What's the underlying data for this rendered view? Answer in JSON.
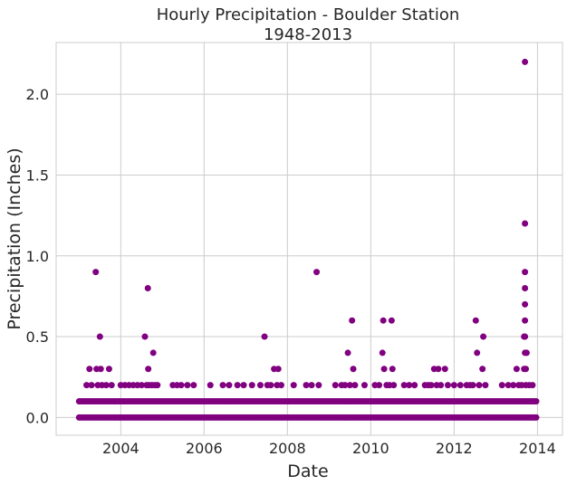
{
  "chart_data": {
    "type": "scatter",
    "title_line1": "Hourly Precipitation - Boulder Station",
    "title_line2": "1948-2013",
    "xlabel": "Date",
    "ylabel": "Precipitation (Inches)",
    "x_ticks": [
      "2004",
      "2006",
      "2008",
      "2010",
      "2012",
      "2014"
    ],
    "y_ticks": [
      "0.0",
      "0.5",
      "1.0",
      "1.5",
      "2.0"
    ],
    "xlim": [
      2002.45,
      2014.6
    ],
    "ylim": [
      -0.11,
      2.32
    ],
    "grid": true,
    "marker_color": "#800080",
    "baseline_values": [
      0,
      0.1
    ],
    "baseline_x_range": [
      2003.0,
      2013.97
    ],
    "points": [
      {
        "x": 2003.18,
        "y": 0.2
      },
      {
        "x": 2003.25,
        "y": 0.3
      },
      {
        "x": 2003.3,
        "y": 0.2
      },
      {
        "x": 2003.4,
        "y": 0.9
      },
      {
        "x": 2003.42,
        "y": 0.3
      },
      {
        "x": 2003.45,
        "y": 0.2
      },
      {
        "x": 2003.5,
        "y": 0.5
      },
      {
        "x": 2003.52,
        "y": 0.3
      },
      {
        "x": 2003.55,
        "y": 0.2
      },
      {
        "x": 2003.65,
        "y": 0.2
      },
      {
        "x": 2003.72,
        "y": 0.3
      },
      {
        "x": 2003.78,
        "y": 0.2
      },
      {
        "x": 2004.0,
        "y": 0.2
      },
      {
        "x": 2004.1,
        "y": 0.2
      },
      {
        "x": 2004.2,
        "y": 0.2
      },
      {
        "x": 2004.3,
        "y": 0.2
      },
      {
        "x": 2004.4,
        "y": 0.2
      },
      {
        "x": 2004.5,
        "y": 0.2
      },
      {
        "x": 2004.58,
        "y": 0.5
      },
      {
        "x": 2004.62,
        "y": 0.2
      },
      {
        "x": 2004.65,
        "y": 0.8
      },
      {
        "x": 2004.66,
        "y": 0.3
      },
      {
        "x": 2004.68,
        "y": 0.2
      },
      {
        "x": 2004.75,
        "y": 0.2
      },
      {
        "x": 2004.78,
        "y": 0.4
      },
      {
        "x": 2004.82,
        "y": 0.2
      },
      {
        "x": 2004.88,
        "y": 0.2
      },
      {
        "x": 2005.25,
        "y": 0.2
      },
      {
        "x": 2005.35,
        "y": 0.2
      },
      {
        "x": 2005.45,
        "y": 0.2
      },
      {
        "x": 2005.6,
        "y": 0.2
      },
      {
        "x": 2005.75,
        "y": 0.2
      },
      {
        "x": 2006.15,
        "y": 0.2
      },
      {
        "x": 2006.45,
        "y": 0.2
      },
      {
        "x": 2006.6,
        "y": 0.2
      },
      {
        "x": 2006.8,
        "y": 0.2
      },
      {
        "x": 2006.95,
        "y": 0.2
      },
      {
        "x": 2007.15,
        "y": 0.2
      },
      {
        "x": 2007.35,
        "y": 0.2
      },
      {
        "x": 2007.45,
        "y": 0.5
      },
      {
        "x": 2007.52,
        "y": 0.2
      },
      {
        "x": 2007.6,
        "y": 0.2
      },
      {
        "x": 2007.68,
        "y": 0.3
      },
      {
        "x": 2007.75,
        "y": 0.2
      },
      {
        "x": 2007.78,
        "y": 0.3
      },
      {
        "x": 2007.85,
        "y": 0.2
      },
      {
        "x": 2008.15,
        "y": 0.2
      },
      {
        "x": 2008.45,
        "y": 0.2
      },
      {
        "x": 2008.58,
        "y": 0.2
      },
      {
        "x": 2008.7,
        "y": 0.9
      },
      {
        "x": 2008.75,
        "y": 0.2
      },
      {
        "x": 2009.15,
        "y": 0.2
      },
      {
        "x": 2009.3,
        "y": 0.2
      },
      {
        "x": 2009.38,
        "y": 0.2
      },
      {
        "x": 2009.45,
        "y": 0.4
      },
      {
        "x": 2009.5,
        "y": 0.2
      },
      {
        "x": 2009.55,
        "y": 0.6
      },
      {
        "x": 2009.58,
        "y": 0.3
      },
      {
        "x": 2009.62,
        "y": 0.2
      },
      {
        "x": 2009.85,
        "y": 0.2
      },
      {
        "x": 2010.1,
        "y": 0.2
      },
      {
        "x": 2010.2,
        "y": 0.2
      },
      {
        "x": 2010.28,
        "y": 0.4
      },
      {
        "x": 2010.3,
        "y": 0.6
      },
      {
        "x": 2010.32,
        "y": 0.3
      },
      {
        "x": 2010.38,
        "y": 0.2
      },
      {
        "x": 2010.45,
        "y": 0.2
      },
      {
        "x": 2010.5,
        "y": 0.6
      },
      {
        "x": 2010.52,
        "y": 0.3
      },
      {
        "x": 2010.55,
        "y": 0.2
      },
      {
        "x": 2010.8,
        "y": 0.2
      },
      {
        "x": 2010.92,
        "y": 0.2
      },
      {
        "x": 2011.05,
        "y": 0.2
      },
      {
        "x": 2011.3,
        "y": 0.2
      },
      {
        "x": 2011.38,
        "y": 0.2
      },
      {
        "x": 2011.45,
        "y": 0.2
      },
      {
        "x": 2011.52,
        "y": 0.3
      },
      {
        "x": 2011.58,
        "y": 0.2
      },
      {
        "x": 2011.62,
        "y": 0.3
      },
      {
        "x": 2011.68,
        "y": 0.2
      },
      {
        "x": 2011.78,
        "y": 0.3
      },
      {
        "x": 2011.85,
        "y": 0.2
      },
      {
        "x": 2012.0,
        "y": 0.2
      },
      {
        "x": 2012.15,
        "y": 0.2
      },
      {
        "x": 2012.3,
        "y": 0.2
      },
      {
        "x": 2012.38,
        "y": 0.2
      },
      {
        "x": 2012.45,
        "y": 0.2
      },
      {
        "x": 2012.52,
        "y": 0.6
      },
      {
        "x": 2012.55,
        "y": 0.4
      },
      {
        "x": 2012.6,
        "y": 0.2
      },
      {
        "x": 2012.68,
        "y": 0.3
      },
      {
        "x": 2012.7,
        "y": 0.5
      },
      {
        "x": 2012.75,
        "y": 0.2
      },
      {
        "x": 2013.15,
        "y": 0.2
      },
      {
        "x": 2013.3,
        "y": 0.2
      },
      {
        "x": 2013.42,
        "y": 0.2
      },
      {
        "x": 2013.5,
        "y": 0.3
      },
      {
        "x": 2013.55,
        "y": 0.2
      },
      {
        "x": 2013.62,
        "y": 0.2
      },
      {
        "x": 2013.68,
        "y": 0.3
      },
      {
        "x": 2013.7,
        "y": 2.2
      },
      {
        "x": 2013.7,
        "y": 1.2
      },
      {
        "x": 2013.7,
        "y": 0.9
      },
      {
        "x": 2013.7,
        "y": 0.8
      },
      {
        "x": 2013.7,
        "y": 0.7
      },
      {
        "x": 2013.7,
        "y": 0.6
      },
      {
        "x": 2013.7,
        "y": 0.5
      },
      {
        "x": 2013.7,
        "y": 0.4
      },
      {
        "x": 2013.72,
        "y": 0.3
      },
      {
        "x": 2013.72,
        "y": 0.2
      },
      {
        "x": 2013.68,
        "y": 0.5
      },
      {
        "x": 2013.74,
        "y": 0.4
      },
      {
        "x": 2013.8,
        "y": 0.2
      },
      {
        "x": 2013.88,
        "y": 0.2
      }
    ]
  }
}
